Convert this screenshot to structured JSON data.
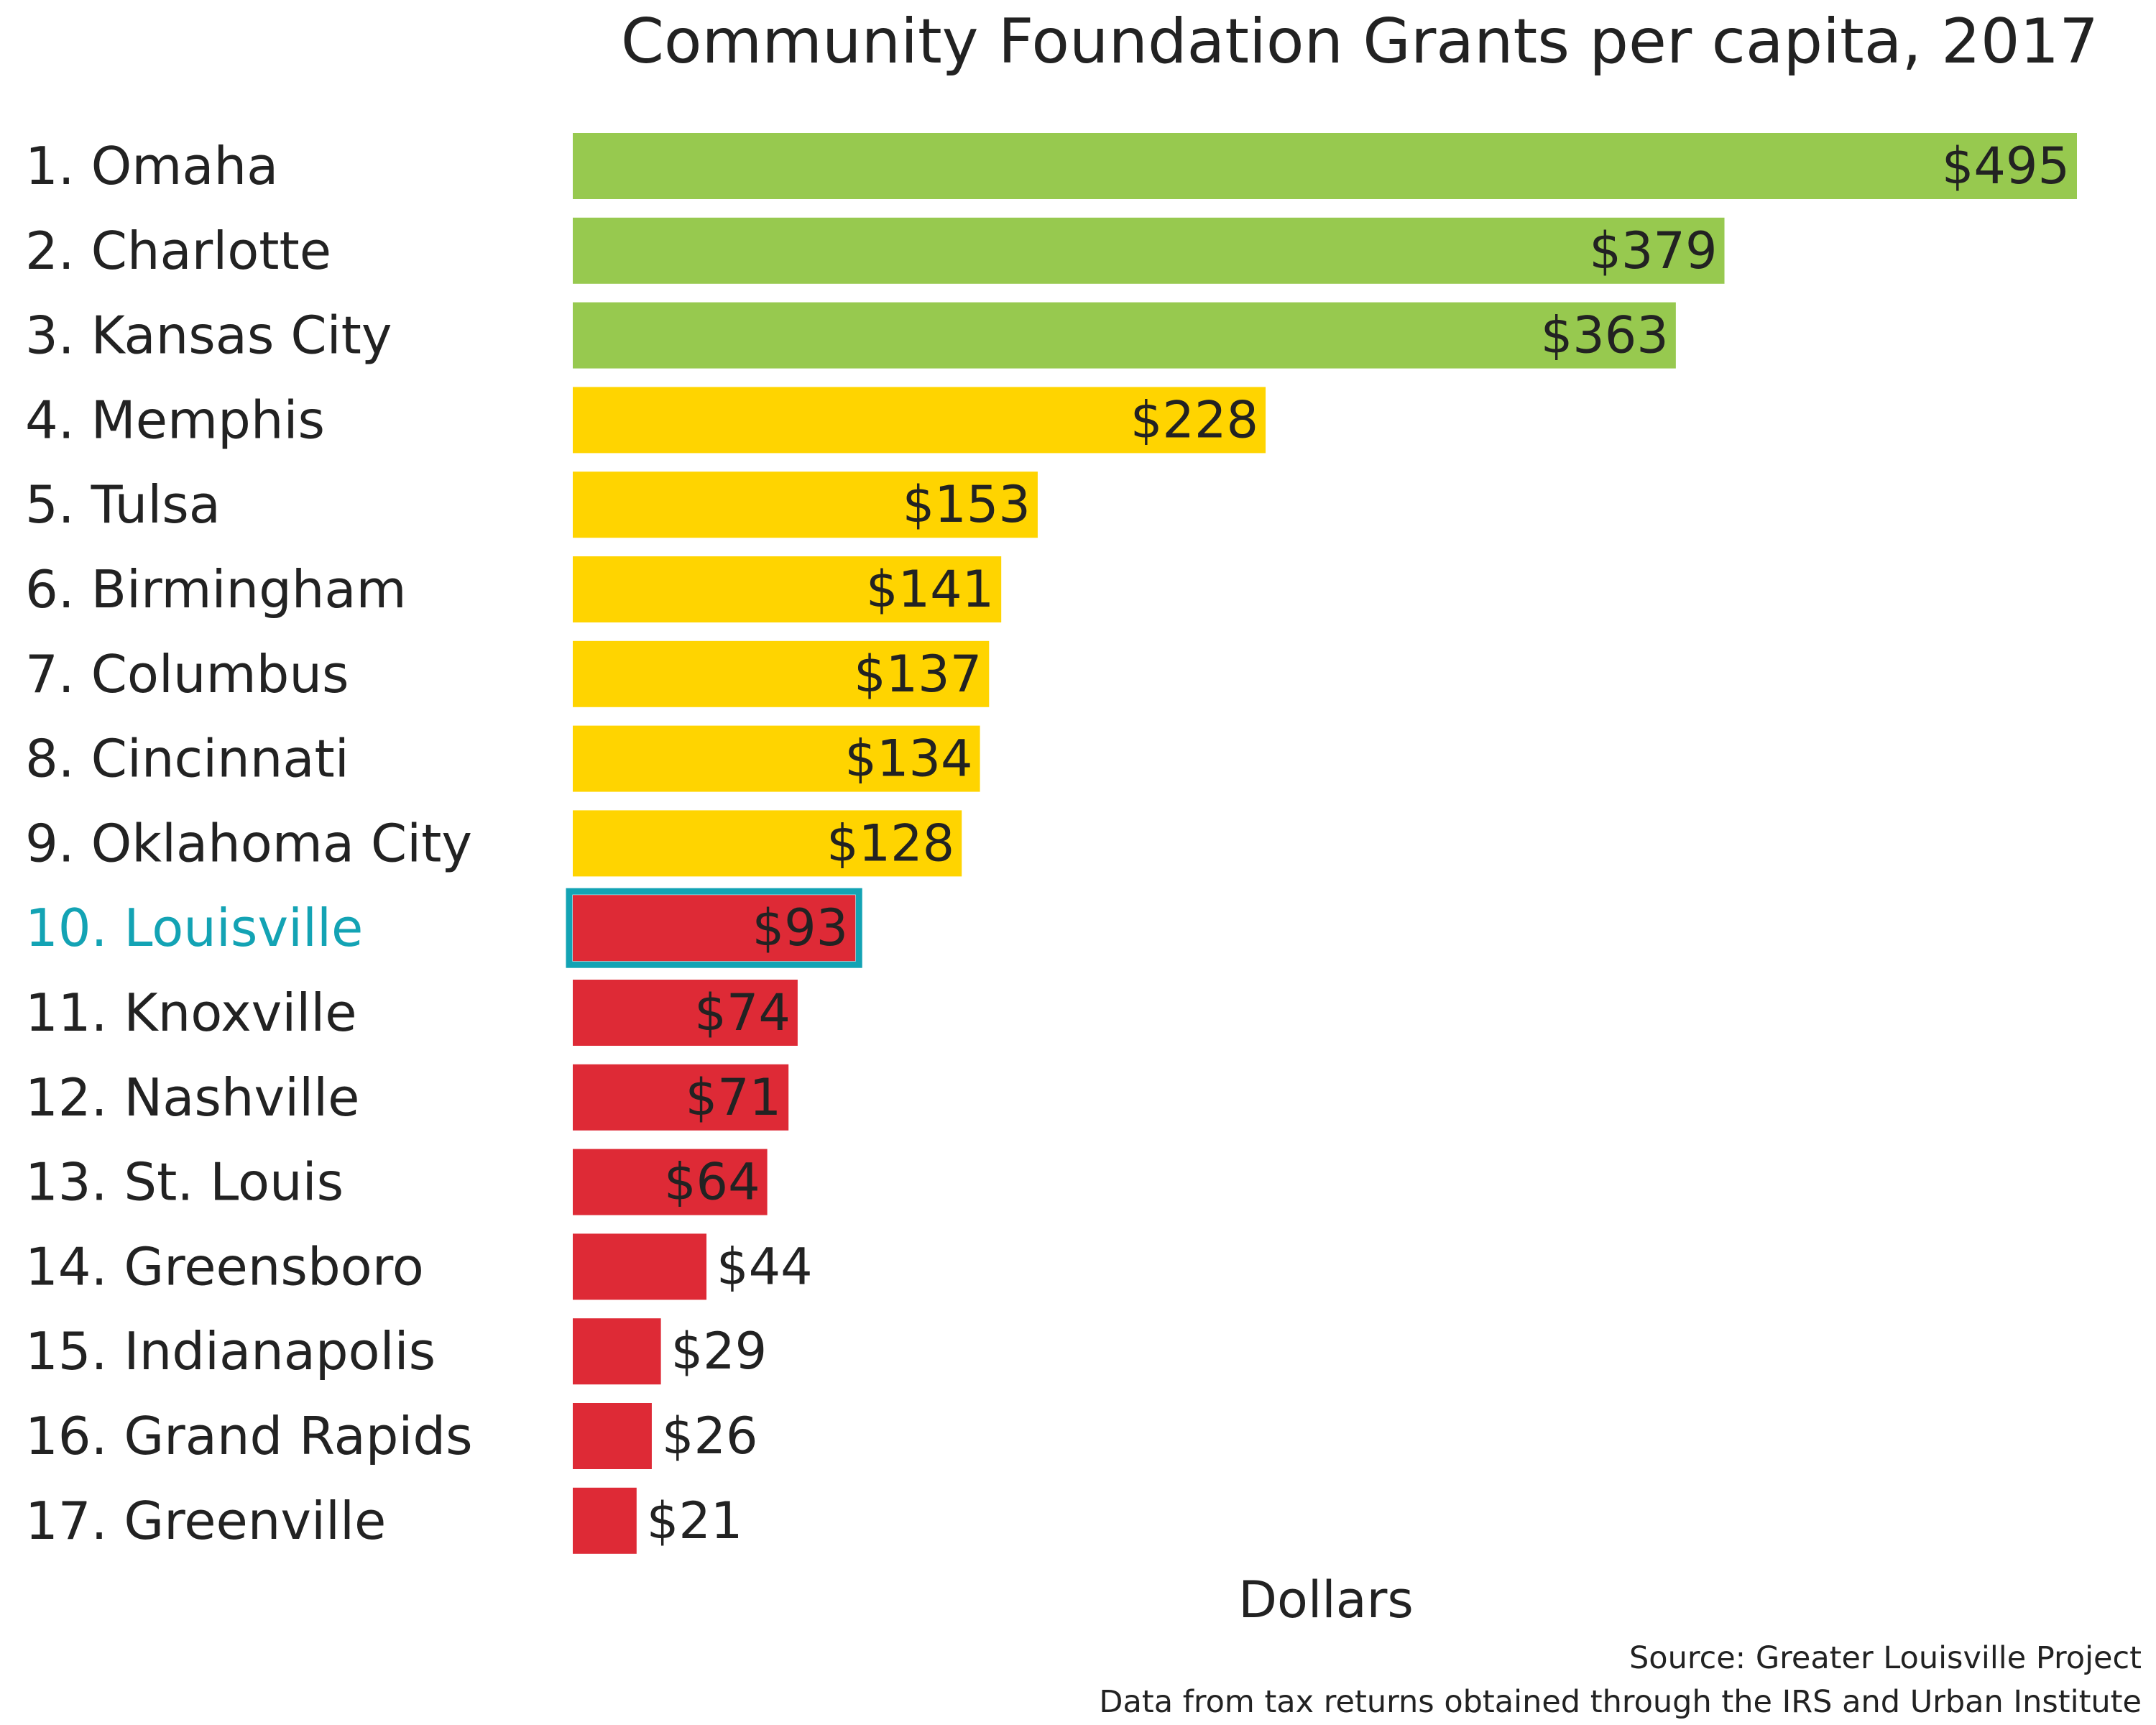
{
  "chart_data": {
    "type": "bar",
    "orientation": "horizontal",
    "title": "Community Foundation Grants per capita, 2017",
    "xlabel": "Dollars",
    "ylabel": "",
    "categories": [
      "1. Omaha",
      "2. Charlotte",
      "3. Kansas City",
      "4. Memphis",
      "5. Tulsa",
      "6. Birmingham",
      "7. Columbus",
      "8. Cincinnati",
      "9. Oklahoma City",
      "10. Louisville",
      "11. Knoxville",
      "12. Nashville",
      "13. St. Louis",
      "14. Greensboro",
      "15. Indianapolis",
      "16. Grand Rapids",
      "17. Greenville"
    ],
    "values": [
      495,
      379,
      363,
      228,
      153,
      141,
      137,
      134,
      128,
      93,
      74,
      71,
      64,
      44,
      29,
      26,
      21
    ],
    "data_labels": [
      "$495",
      "$379",
      "$363",
      "$228",
      "$153",
      "$141",
      "$137",
      "$134",
      "$128",
      "$93",
      "$74",
      "$71",
      "$64",
      "$44",
      "$29",
      "$26",
      "$21"
    ],
    "tiers": [
      "high",
      "high",
      "high",
      "mid",
      "mid",
      "mid",
      "mid",
      "mid",
      "mid",
      "low",
      "low",
      "low",
      "low",
      "low",
      "low",
      "low",
      "low"
    ],
    "colors": {
      "high": "#97c94f",
      "mid": "#ffd400",
      "low": "#de2a36",
      "highlight": "#13a3b4",
      "text": "#222222"
    },
    "highlight_index": 9,
    "xlim": [
      0,
      495
    ],
    "grid": false,
    "legend": "none"
  },
  "footer": {
    "source": "Source: Greater Louisville Project",
    "note": "Data from tax returns obtained through the IRS and Urban Institute"
  }
}
